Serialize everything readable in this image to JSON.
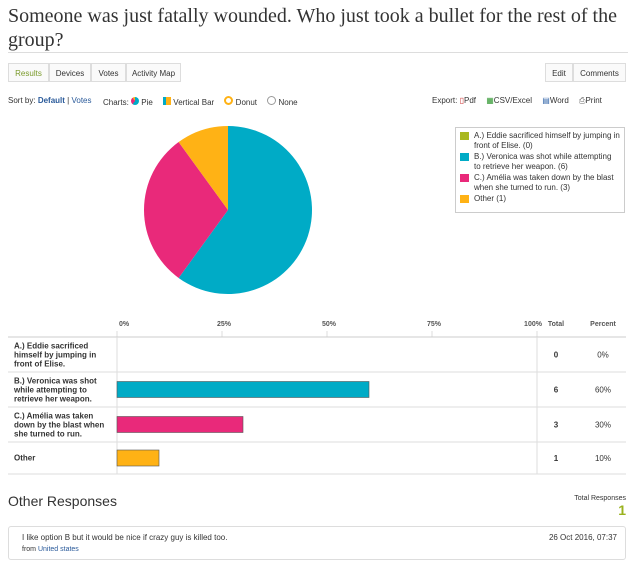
{
  "header": {
    "title": "Someone was just fatally wounded. Who just took a bullet for the rest of the group?"
  },
  "tabs": [
    "Results",
    "Devices",
    "Votes",
    "Activity Map"
  ],
  "actions": [
    "Edit",
    "Comments"
  ],
  "toolbar": {
    "sort_label": "Sort by:",
    "sort_default": "Default",
    "sort_separator": "|",
    "sort_votes": "Votes",
    "charts_label": "Charts:",
    "chart_types": [
      "Pie",
      "Vertical Bar",
      "Donut",
      "None"
    ],
    "export_label": "Export:",
    "exports": [
      "Pdf",
      "CSV/Excel",
      "Word",
      "Print"
    ]
  },
  "options": [
    {
      "label": "A.) Eddie sacrificed himself by jumping in front of Elise.",
      "legend": "A.) Eddie sacrificed himself by jumping in front of Elise. (0)",
      "total": 0,
      "percent": 0,
      "percent_label": "0%",
      "color": "#a9b81e"
    },
    {
      "label": "B.) Veronica was shot while attempting to retrieve her weapon.",
      "legend": "B.) Veronica was shot while attempting to retrieve her weapon. (6)",
      "total": 6,
      "percent": 60,
      "percent_label": "60%",
      "color": "#00abc6"
    },
    {
      "label": "C.) Amélia was taken down by the blast when she turned to run.",
      "legend": "C.) Amélia was taken down by the blast when she turned to run. (3)",
      "total": 3,
      "percent": 30,
      "percent_label": "30%",
      "color": "#e9297a"
    },
    {
      "label": "Other",
      "legend": "Other (1)",
      "total": 1,
      "percent": 10,
      "percent_label": "10%",
      "color": "#ffb215"
    }
  ],
  "table": {
    "ticks": [
      {
        "value": 0,
        "label": "0%"
      },
      {
        "value": 25,
        "label": "25%"
      },
      {
        "value": 50,
        "label": "50%"
      },
      {
        "value": 75,
        "label": "75%"
      },
      {
        "value": 100,
        "label": "100%"
      }
    ],
    "total_header": "Total",
    "percent_header": "Percent"
  },
  "other_responses": {
    "title": "Other Responses",
    "total_label": "Total Responses",
    "total": 1,
    "responses": [
      {
        "text": "I like option B but it would be nice if crazy guy is killed too.",
        "date": "26 Oct 2016, 07:37",
        "from_label": "from",
        "location": "United states"
      }
    ]
  }
}
